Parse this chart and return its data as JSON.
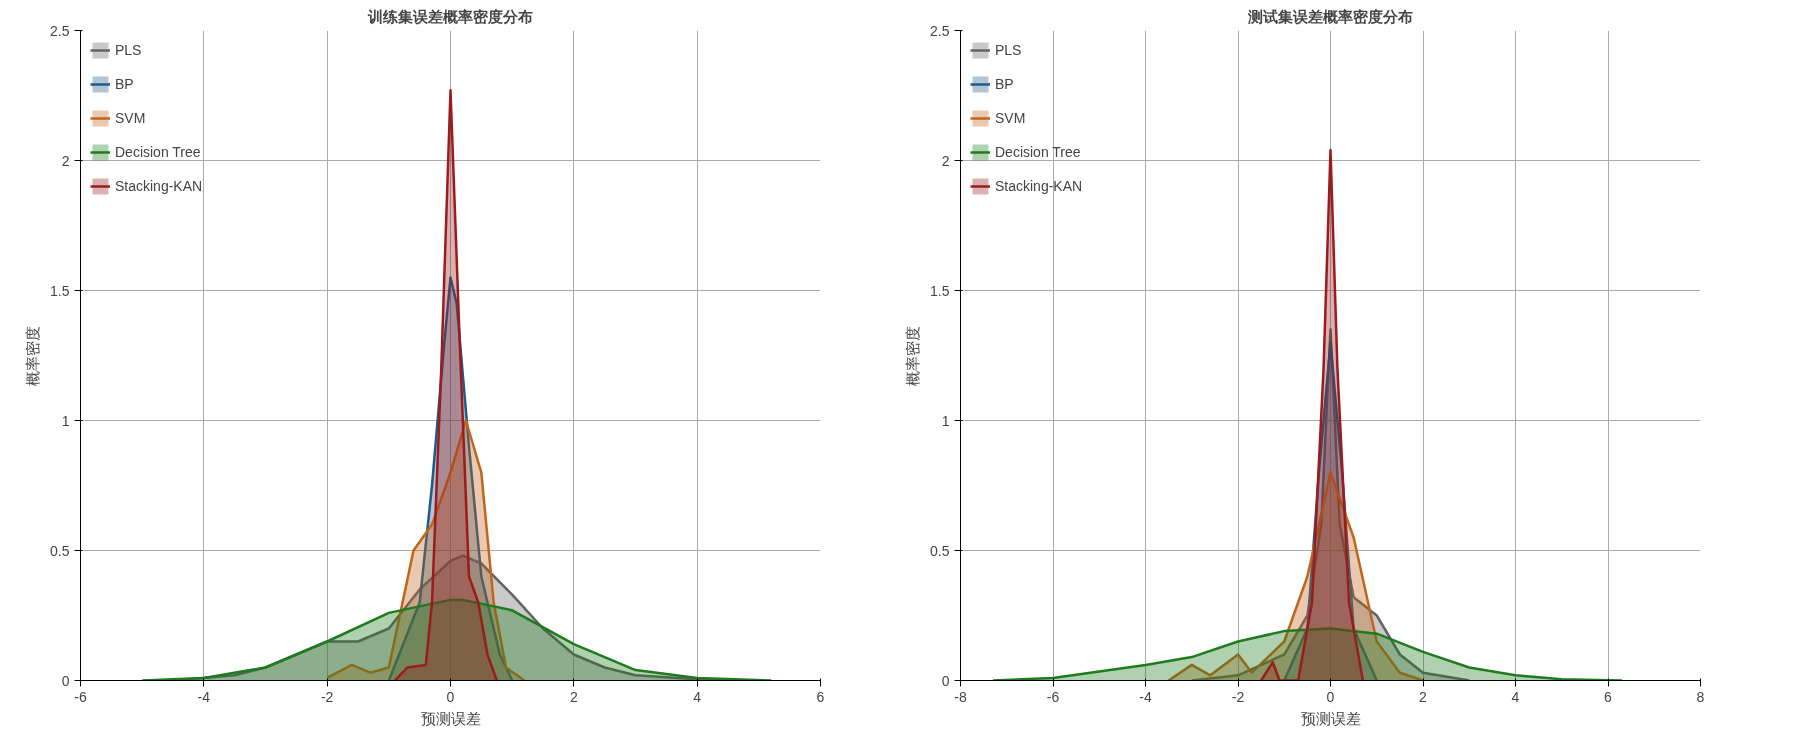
{
  "chart_data": [
    {
      "type": "area",
      "title": "训练集误差概率密度分布",
      "xlabel": "预测误差",
      "ylabel": "概率密度",
      "xlim": [
        -6,
        6
      ],
      "xticks": [
        -6,
        -4,
        -2,
        0,
        2,
        4,
        6
      ],
      "ylim": [
        0,
        2.5
      ],
      "yticks": [
        0,
        0.5,
        1,
        1.5,
        2,
        2.5
      ],
      "grid": true,
      "legend": "top left",
      "series": [
        {
          "name": "PLS",
          "color": "#636363",
          "x": [
            -4.5,
            -3.5,
            -3,
            -2.5,
            -2,
            -1.5,
            -1,
            -0.5,
            0,
            0.2,
            0.5,
            1,
            1.5,
            2,
            2.5,
            3,
            4,
            5
          ],
          "values": [
            0,
            0.02,
            0.05,
            0.1,
            0.15,
            0.15,
            0.2,
            0.35,
            0.46,
            0.48,
            0.45,
            0.33,
            0.2,
            0.1,
            0.05,
            0.02,
            0.005,
            0
          ]
        },
        {
          "name": "BP",
          "color": "#1f5a8a",
          "x": [
            -1,
            -0.5,
            -0.3,
            -0.1,
            0,
            0.1,
            0.3,
            0.5,
            0.8,
            1
          ],
          "values": [
            0,
            0.3,
            0.75,
            1.3,
            1.55,
            1.45,
            0.9,
            0.4,
            0.1,
            0
          ]
        },
        {
          "name": "SVM",
          "color": "#c0651a",
          "x": [
            -2,
            -1.6,
            -1.3,
            -1,
            -0.6,
            -0.3,
            0,
            0.25,
            0.5,
            0.7,
            0.9,
            1.2
          ],
          "values": [
            0.01,
            0.06,
            0.03,
            0.05,
            0.5,
            0.6,
            0.8,
            1.0,
            0.8,
            0.3,
            0.05,
            0
          ]
        },
        {
          "name": "Decision Tree",
          "color": "#1e7b1e",
          "x": [
            -5,
            -4,
            -3,
            -2,
            -1,
            0,
            0.2,
            1,
            2,
            3,
            4,
            5.2
          ],
          "values": [
            0,
            0.01,
            0.05,
            0.15,
            0.26,
            0.31,
            0.31,
            0.27,
            0.14,
            0.04,
            0.01,
            0
          ]
        },
        {
          "name": "Stacking-KAN",
          "color": "#9b1c1c",
          "x": [
            -0.9,
            -0.7,
            -0.4,
            -0.3,
            -0.15,
            0,
            0.15,
            0.3,
            0.45,
            0.6,
            0.75
          ],
          "values": [
            0,
            0.05,
            0.06,
            0.3,
            1.2,
            2.27,
            1.3,
            0.4,
            0.3,
            0.1,
            0
          ]
        }
      ]
    },
    {
      "type": "area",
      "title": "测试集误差概率密度分布",
      "xlabel": "预测误差",
      "ylabel": "概率密度",
      "xlim": [
        -8,
        8
      ],
      "xticks": [
        -8,
        -6,
        -4,
        -2,
        0,
        2,
        4,
        6,
        8
      ],
      "ylim": [
        0,
        2.5
      ],
      "yticks": [
        0,
        0.5,
        1,
        1.5,
        2,
        2.5
      ],
      "grid": true,
      "legend": "top left",
      "series": [
        {
          "name": "PLS",
          "color": "#636363",
          "x": [
            -3,
            -2,
            -1,
            -0.5,
            -0.2,
            0,
            0.2,
            0.5,
            1,
            1.5,
            2,
            3
          ],
          "values": [
            0,
            0.02,
            0.1,
            0.25,
            0.6,
            1.35,
            0.6,
            0.32,
            0.25,
            0.1,
            0.03,
            0
          ]
        },
        {
          "name": "BP",
          "color": "#1f5a8a",
          "x": [
            -1,
            -0.5,
            -0.25,
            0,
            0.25,
            0.5,
            1
          ],
          "values": [
            0,
            0.2,
            0.8,
            1.3,
            0.8,
            0.2,
            0
          ]
        },
        {
          "name": "SVM",
          "color": "#c0651a",
          "x": [
            -3.5,
            -3,
            -2.6,
            -2,
            -1.7,
            -1,
            -0.5,
            0,
            0.5,
            1,
            1.5,
            2
          ],
          "values": [
            0,
            0.06,
            0.02,
            0.1,
            0.03,
            0.15,
            0.4,
            0.8,
            0.55,
            0.15,
            0.03,
            0
          ]
        },
        {
          "name": "Decision Tree",
          "color": "#1e7b1e",
          "x": [
            -7.3,
            -6,
            -4,
            -3,
            -2,
            -1,
            0,
            1,
            2,
            3,
            4,
            5,
            6.3
          ],
          "values": [
            0,
            0.01,
            0.06,
            0.09,
            0.15,
            0.19,
            0.2,
            0.18,
            0.11,
            0.05,
            0.02,
            0.005,
            0
          ]
        },
        {
          "name": "Stacking-KAN",
          "color": "#9b1c1c",
          "x": [
            -1.5,
            -1.25,
            -1.1,
            -0.7,
            -0.4,
            -0.15,
            0,
            0.15,
            0.4,
            0.7
          ],
          "values": [
            0,
            0.07,
            0,
            0,
            0.3,
            1.2,
            2.04,
            1.2,
            0.3,
            0
          ]
        }
      ]
    }
  ]
}
